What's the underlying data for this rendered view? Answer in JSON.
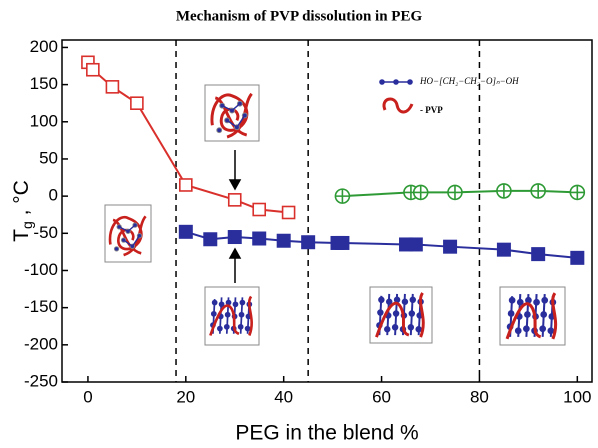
{
  "chart_data": {
    "type": "line",
    "title": "Mechanism of PVP dissolution  in PEG",
    "xlabel": "PEG in the blend %",
    "ylabel": [
      "T",
      "g",
      " ,  °C"
    ],
    "xlim": [
      -5.3,
      103
    ],
    "ylim": [
      -250,
      210
    ],
    "xticks": [
      0,
      20,
      40,
      60,
      80,
      100
    ],
    "yticks": [
      -250,
      -200,
      -150,
      -100,
      -50,
      0,
      50,
      100,
      150,
      200
    ],
    "vlines": [
      18,
      45,
      80
    ],
    "legend": [
      "HO−[CH₂−CH₂−O]ₙ−OH",
      "- PVP"
    ],
    "series": [
      {
        "color": "#d9302c",
        "marker": "open-square",
        "x": [
          0,
          1,
          5,
          10,
          20,
          30,
          35,
          41
        ],
        "values": [
          180,
          170,
          147,
          125,
          15,
          -5,
          -18,
          -22
        ]
      },
      {
        "color": "#2e9a35",
        "marker": "circle-plus",
        "x": [
          52,
          66,
          68,
          75,
          85,
          92,
          100
        ],
        "values": [
          0,
          5,
          5,
          5,
          7,
          7,
          5
        ]
      },
      {
        "color": "#2a2e9c",
        "marker": "filled-square",
        "x": [
          20,
          25,
          30,
          35,
          40,
          45,
          51,
          52,
          65,
          67,
          74,
          85,
          92,
          100
        ],
        "values": [
          -48,
          -58,
          -55,
          -57,
          -60,
          -62,
          -63,
          -63,
          -65,
          -65,
          -68,
          -72,
          -78,
          -83
        ]
      }
    ]
  }
}
